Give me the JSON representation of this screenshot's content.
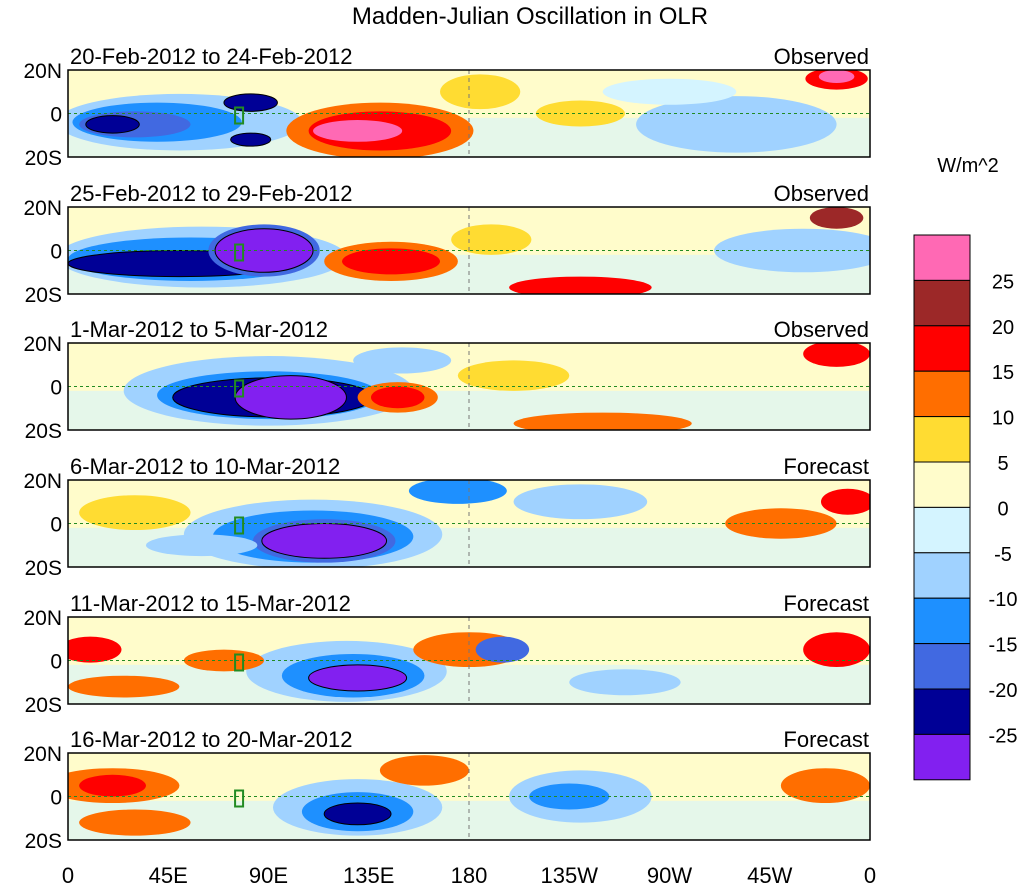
{
  "chart_data": {
    "type": "heatmap",
    "title": "Madden-Julian Oscillation in OLR",
    "unit_label": "W/m^2",
    "x_ticks": [
      "0",
      "45E",
      "90E",
      "135E",
      "180",
      "135W",
      "90W",
      "45W",
      "0"
    ],
    "y_ticks": [
      "20N",
      "0",
      "20S"
    ],
    "xlim": [
      0,
      360
    ],
    "ylim": [
      -20,
      20
    ],
    "panels": [
      {
        "range": "20-Feb-2012 to 24-Feb-2012",
        "kind": "Observed"
      },
      {
        "range": "25-Feb-2012 to 29-Feb-2012",
        "kind": "Observed"
      },
      {
        "range": "1-Mar-2012 to 5-Mar-2012",
        "kind": "Observed"
      },
      {
        "range": "6-Mar-2012 to 10-Mar-2012",
        "kind": "Forecast"
      },
      {
        "range": "11-Mar-2012 to 15-Mar-2012",
        "kind": "Forecast"
      },
      {
        "range": "16-Mar-2012 to 20-Mar-2012",
        "kind": "Forecast"
      }
    ],
    "colorbar": {
      "labels": [
        "25",
        "20",
        "15",
        "10",
        "5",
        "0",
        "-5",
        "-10",
        "-15",
        "-20",
        "-25"
      ],
      "colors": [
        "#ff69b4",
        "#9c2828",
        "#ff0000",
        "#ff6e00",
        "#ffdc32",
        "#fffccb",
        "#d4f4ff",
        "#a0d2ff",
        "#1e90ff",
        "#4169e1",
        "#000096",
        "#8220f0"
      ]
    }
  }
}
